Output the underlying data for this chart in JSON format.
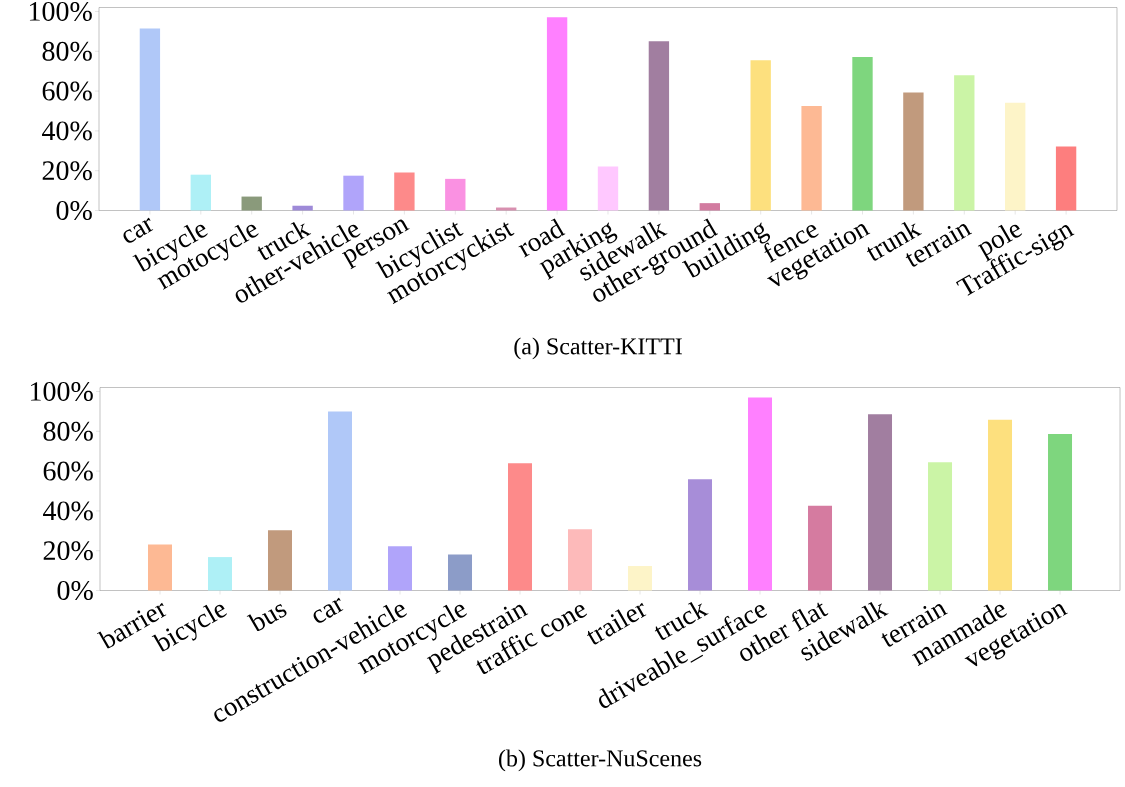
{
  "chart_data": [
    {
      "type": "bar",
      "title": "(a) Scatter-KITTI",
      "categories": [
        "car",
        "bicycle",
        "motocycle",
        "truck",
        "other-vehicle",
        "person",
        "bicyclist",
        "motorcyckist",
        "road",
        "parking",
        "sidewalk",
        "other-ground",
        "building",
        "fence",
        "vegetation",
        "trunk",
        "terrain",
        "pole",
        "Traffic-sign"
      ],
      "values": [
        91.4,
        18.0,
        7.0,
        2.4,
        17.5,
        19.1,
        15.9,
        1.5,
        97.1,
        22.1,
        85.0,
        3.7,
        75.5,
        52.5,
        77.1,
        59.3,
        67.9,
        54.2,
        32.1
      ],
      "colors": [
        "#b0c8f8",
        "#aef0f6",
        "#8a9a7b",
        "#9e8ad8",
        "#b0a4fa",
        "#fd8a8a",
        "#fa91e2",
        "#d890b0",
        "#ff80ff",
        "#ffc8ff",
        "#a17ea0",
        "#d27ba0",
        "#fde07e",
        "#fdb994",
        "#7ed67e",
        "#c19a7d",
        "#cbf4a6",
        "#fdf4c8",
        "#fd7e7e"
      ],
      "ylim": [
        0,
        102
      ],
      "yticks": [
        {
          "value": 0,
          "label": "0%"
        },
        {
          "value": 20,
          "label": "20%"
        },
        {
          "value": 40,
          "label": "40%"
        },
        {
          "value": 60,
          "label": "60%"
        },
        {
          "value": 80,
          "label": "80%"
        },
        {
          "value": 100,
          "label": "100%"
        }
      ]
    },
    {
      "type": "bar",
      "title": "(b) Scatter-NuScenes",
      "categories": [
        "barrier",
        "bicycle",
        "bus",
        "car",
        "construction-vehicle",
        "motorcycle",
        "pedestrain",
        "traffic cone",
        "trailer",
        "truck",
        "driveable_surface",
        "other flat",
        "sidewalk",
        "terrain",
        "manmade",
        "vegetation"
      ],
      "values": [
        23.1,
        16.8,
        30.3,
        89.9,
        22.2,
        18.1,
        63.9,
        30.8,
        12.3,
        55.9,
        97.0,
        42.6,
        88.6,
        64.4,
        85.8,
        78.7
      ],
      "colors": [
        "#fdb994",
        "#aef0f6",
        "#c19a7d",
        "#b0c8f8",
        "#b0a4fa",
        "#8c9cc8",
        "#fd8a8a",
        "#fdbaba",
        "#fdf4c8",
        "#a78dd8",
        "#ff80ff",
        "#d57ba0",
        "#a17ea0",
        "#cbf4a6",
        "#fde07e",
        "#7ed67e"
      ],
      "ylim": [
        0,
        102
      ],
      "yticks": [
        {
          "value": 0,
          "label": "0%"
        },
        {
          "value": 20,
          "label": "20%"
        },
        {
          "value": 40,
          "label": "40%"
        },
        {
          "value": 60,
          "label": "60%"
        },
        {
          "value": 80,
          "label": "80%"
        },
        {
          "value": 100,
          "label": "100%"
        }
      ]
    }
  ]
}
